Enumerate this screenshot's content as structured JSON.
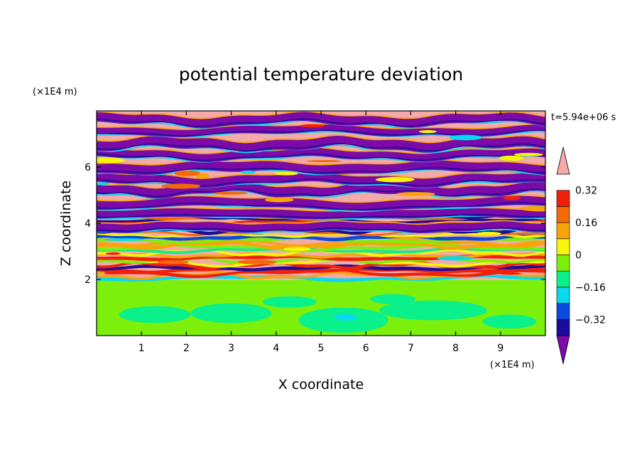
{
  "chart_data": {
    "type": "heatmap",
    "title": "potential temperature deviation",
    "xlabel": "X coordinate",
    "ylabel": "Z coordinate",
    "x_unit": "(×1E4 m)",
    "y_unit": "(×1E4 m)",
    "time_label": "t=5.94e+06 s",
    "xlim": [
      0,
      10
    ],
    "ylim": [
      0,
      8
    ],
    "x_ticks": [
      "1",
      "2",
      "3",
      "4",
      "5",
      "6",
      "7",
      "8",
      "9"
    ],
    "y_ticks": [
      "2",
      "4",
      "6"
    ],
    "colorbar": {
      "levels": [
        -0.48,
        -0.4,
        -0.32,
        -0.24,
        -0.16,
        -0.08,
        0,
        0.08,
        0.16,
        0.24,
        0.32,
        0.4,
        0.48
      ],
      "tick_labels": [
        "0.32",
        "0.16",
        "0",
        "−0.16",
        "−0.32"
      ],
      "colors": [
        "#7b0aa8",
        "#1c0c9c",
        "#0a4ae0",
        "#0ad8f0",
        "#0af08a",
        "#7cf00a",
        "#f6f60a",
        "#f8a40a",
        "#f46a0a",
        "#f0200a",
        "#f5aaaa"
      ],
      "extend": "both"
    },
    "regions": {
      "lower_layer_top": 1.98,
      "banded_region": [
        1.98,
        8
      ]
    }
  }
}
